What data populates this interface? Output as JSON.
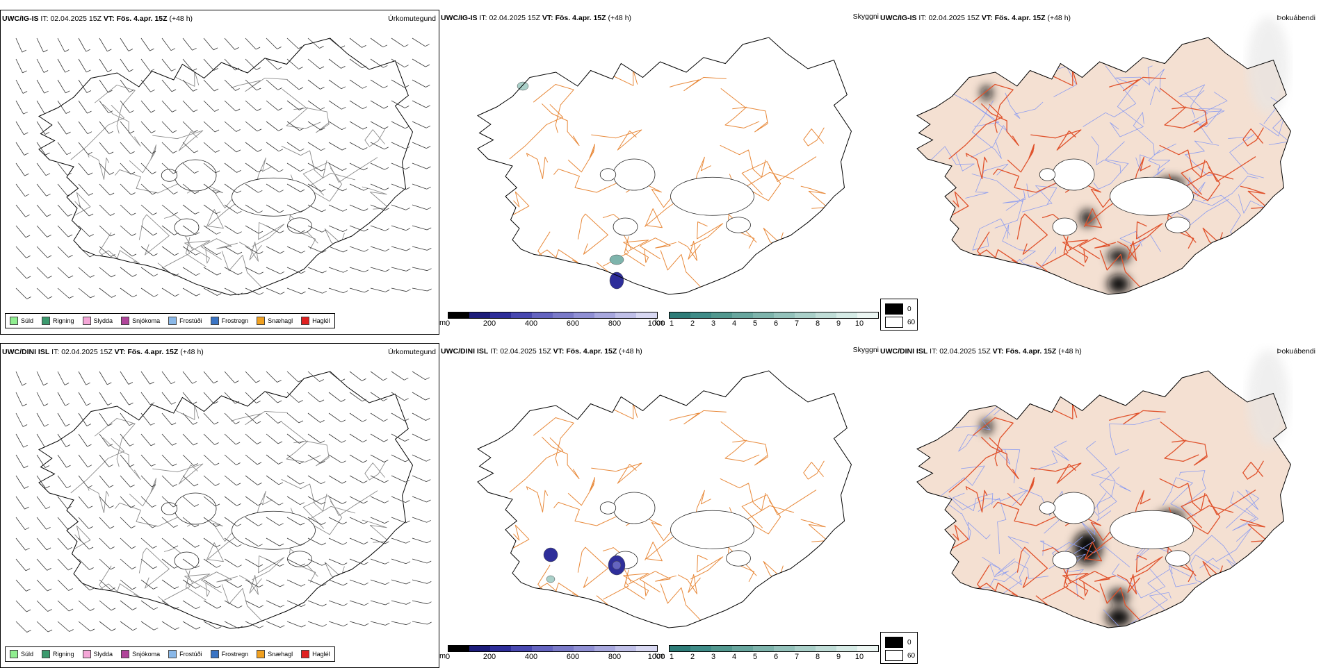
{
  "panels": [
    {
      "model": "UWC/IG-IS",
      "it_label": "IT:",
      "it_value": "02.04.2025 15Z",
      "vt_label": "VT:",
      "vt_value": "Fös. 4.apr. 15Z",
      "lead": "(+48 h)",
      "param": "Úrkomutegund"
    },
    {
      "model": "UWC/IG-IS",
      "it_label": "IT:",
      "it_value": "02.04.2025 15Z",
      "vt_label": "VT:",
      "vt_value": "Fös. 4.apr. 15Z",
      "lead": "(+48 h)",
      "param": "Skyggni"
    },
    {
      "model": "UWC/IG-IS",
      "it_label": "IT:",
      "it_value": "02.04.2025 15Z",
      "vt_label": "VT:",
      "vt_value": "Fös. 4.apr. 15Z",
      "lead": "(+48 h)",
      "param": "Þokuábendi"
    },
    {
      "model": "UWC/DINI ISL",
      "it_label": "IT:",
      "it_value": "02.04.2025 15Z",
      "vt_label": "VT:",
      "vt_value": "Fös. 4.apr. 15Z",
      "lead": "(+48 h)",
      "param": "Úrkomutegund"
    },
    {
      "model": "UWC/DINI ISL",
      "it_label": "IT:",
      "it_value": "02.04.2025 15Z",
      "vt_label": "VT:",
      "vt_value": "Fös. 4.apr. 15Z",
      "lead": "(+48 h)",
      "param": "Skyggni"
    },
    {
      "model": "UWC/DINI ISL",
      "it_label": "IT:",
      "it_value": "02.04.2025 15Z",
      "vt_label": "VT:",
      "vt_value": "Fös. 4.apr. 15Z",
      "lead": "(+48 h)",
      "param": "Þokuábendi"
    }
  ],
  "precip_legend": [
    {
      "label": "Súld",
      "color": "#90ee90"
    },
    {
      "label": "Rigning",
      "color": "#3c9a6e"
    },
    {
      "label": "Slydda",
      "color": "#f4a6d7"
    },
    {
      "label": "Snjókoma",
      "color": "#b0449a"
    },
    {
      "label": "Frostúði",
      "color": "#8ab8e8"
    },
    {
      "label": "Frostregn",
      "color": "#3a74c4"
    },
    {
      "label": "Snæhagl",
      "color": "#f0a020"
    },
    {
      "label": "Haglél",
      "color": "#e02020"
    }
  ],
  "visibility_m": {
    "unit": "m",
    "ticks": [
      "0",
      "200",
      "400",
      "600",
      "800",
      "1000"
    ],
    "colors": [
      "#000000",
      "#1c1c7a",
      "#2e2e9a",
      "#4848b0",
      "#6464c0",
      "#7a7ac8",
      "#9090d4",
      "#a8a8de",
      "#c0c0e8",
      "#d8d8f2"
    ]
  },
  "visibility_km": {
    "unit": "km",
    "ticks": [
      "1",
      "2",
      "3",
      "4",
      "5",
      "6",
      "7",
      "8",
      "9",
      "10"
    ],
    "colors": [
      "#2e7c78",
      "#3f8c88",
      "#52988f",
      "#68a69e",
      "#7eb4ac",
      "#94c2bb",
      "#aad0c9",
      "#c0ddd7",
      "#d6ebe6",
      "#ecf6f3"
    ]
  },
  "fog_legend": [
    {
      "label": "0",
      "color": "#000000"
    },
    {
      "label": "60",
      "color": "#ffffff"
    }
  ],
  "colors": {
    "land": "#f4e0d2",
    "road_orange": "#e8893a",
    "road_red": "#e0522c",
    "river_blue": "#8c9cf0",
    "coast": "#000000"
  }
}
